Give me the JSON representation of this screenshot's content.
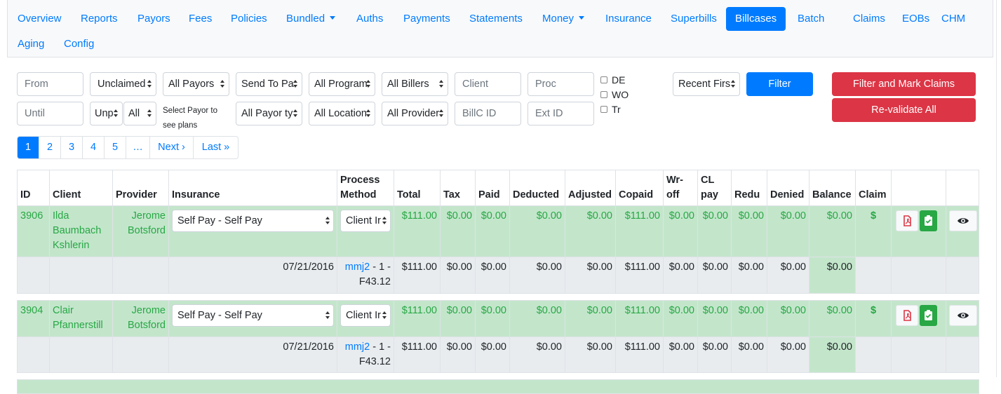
{
  "nav": {
    "row1": [
      "Overview",
      "Reports",
      "Payors",
      "Fees",
      "Policies",
      "Bundled",
      "Auths",
      "Payments",
      "Statements",
      "Money",
      "Insurance",
      "Superbills",
      "Billcases",
      "Batch",
      "Claims",
      "EOBs",
      "CHM"
    ],
    "row2": [
      "Aging",
      "Config"
    ],
    "active": "Billcases"
  },
  "filters": {
    "from_placeholder": "From",
    "until_placeholder": "Until",
    "claim_status": "Unclaimed",
    "unp": "Unp",
    "all": "All",
    "payors": "All Payors",
    "payor_hint_1": "Select Payor to",
    "payor_hint_2": "see plans",
    "send_to": "Send To Pa",
    "payor_types": "All Payor ty",
    "programs": "All Program",
    "locations": "All Location",
    "billers": "All Billers",
    "providers": "All Provider",
    "client_placeholder": "Client",
    "billc_placeholder": "BillC ID",
    "proc_placeholder": "Proc",
    "extid_placeholder": "Ext ID",
    "chk_de": "DE",
    "chk_wo": "WO",
    "chk_tr": "Tr",
    "sort": "Recent Firs",
    "filter_btn": "Filter",
    "filter_mark_btn": "Filter and Mark Claims",
    "revalidate_btn": "Re-validate All"
  },
  "pagination": [
    "1",
    "2",
    "3",
    "4",
    "5",
    "…",
    "Next ›",
    "Last »"
  ],
  "table": {
    "headers": {
      "id": "ID",
      "client": "Client",
      "provider": "Provider",
      "insurance": "Insurance",
      "process1": "Process",
      "process2": "Method",
      "total": "Total",
      "tax": "Tax",
      "paid": "Paid",
      "deducted": "Deducted",
      "adjusted": "Adjusted",
      "copaid": "Copaid",
      "wr1": "Wr-",
      "wr2": "off",
      "cl1": "CL",
      "cl2": "pay",
      "redu": "Redu",
      "denied": "Denied",
      "balance": "Balance",
      "claim": "Claim"
    },
    "rows": [
      {
        "id": "3906",
        "client": "Ilda Baumbach Kshlerin",
        "provider": "Jerome Botsford",
        "insurance": "Self Pay - Self Pay",
        "process": "Client Ir",
        "total": "$111.00",
        "tax": "$0.00",
        "paid": "$0.00",
        "deducted": "$0.00",
        "adjusted": "$0.00",
        "copaid": "$111.00",
        "wroff": "$0.00",
        "clpay": "$0.00",
        "redu": "$0.00",
        "denied": "$0.00",
        "balance": "$0.00",
        "claim": "$",
        "sub": {
          "date": "07/21/2016",
          "code_link": "mmj2",
          "code_rest": " - 1 -",
          "code_dx": "F43.12",
          "total": "$111.00",
          "tax": "$0.00",
          "paid": "$0.00",
          "deducted": "$0.00",
          "adjusted": "$0.00",
          "copaid": "$111.00",
          "wroff": "$0.00",
          "clpay": "$0.00",
          "redu": "$0.00",
          "denied": "$0.00",
          "balance": "$0.00"
        }
      },
      {
        "id": "3904",
        "client": "Clair Pfannerstill",
        "provider": "Jerome Botsford",
        "insurance": "Self Pay - Self Pay",
        "process": "Client Ir",
        "total": "$111.00",
        "tax": "$0.00",
        "paid": "$0.00",
        "deducted": "$0.00",
        "adjusted": "$0.00",
        "copaid": "$111.00",
        "wroff": "$0.00",
        "clpay": "$0.00",
        "redu": "$0.00",
        "denied": "$0.00",
        "balance": "$0.00",
        "claim": "$",
        "sub": {
          "date": "07/21/2016",
          "code_link": "mmj2",
          "code_rest": " - 1 -",
          "code_dx": "F43.12",
          "total": "$111.00",
          "tax": "$0.00",
          "paid": "$0.00",
          "deducted": "$0.00",
          "adjusted": "$0.00",
          "copaid": "$111.00",
          "wroff": "$0.00",
          "clpay": "$0.00",
          "redu": "$0.00",
          "denied": "$0.00",
          "balance": "$0.00"
        }
      }
    ]
  },
  "icons": {
    "pdf": "pdf-file-icon",
    "doc": "clipboard-check-icon",
    "view": "eye-icon"
  },
  "colors": {
    "primary": "#007bff",
    "danger": "#dc3545",
    "success": "#28a745",
    "row_success": "#c3e6cb"
  }
}
